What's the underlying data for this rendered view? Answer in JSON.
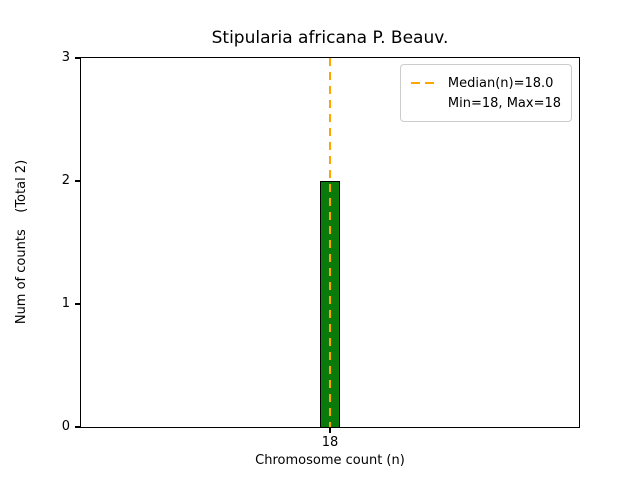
{
  "chart_data": {
    "type": "bar",
    "title": "Stipularia africana P. Beauv.",
    "xlabel": "Chromosome count (n)",
    "ylabel": "Num of counts    (Total 2)",
    "categories": [
      "18"
    ],
    "values": [
      2
    ],
    "ylim": [
      0,
      3
    ],
    "yticks": [
      0,
      1,
      2,
      3
    ],
    "grid": false,
    "legend_position": "upper right",
    "bar": {
      "fill": "#0a7a0a",
      "edge": "#000000"
    },
    "median_line": {
      "x": 18,
      "style": "dashed",
      "color": "#ffa500",
      "label": "Median(n)=18.0"
    },
    "legend": {
      "entries": [
        {
          "sample": "dashed-line",
          "color": "#ffa500",
          "label": "Median(n)=18.0"
        },
        {
          "sample": "none",
          "label": "Min=18, Max=18"
        }
      ]
    }
  }
}
